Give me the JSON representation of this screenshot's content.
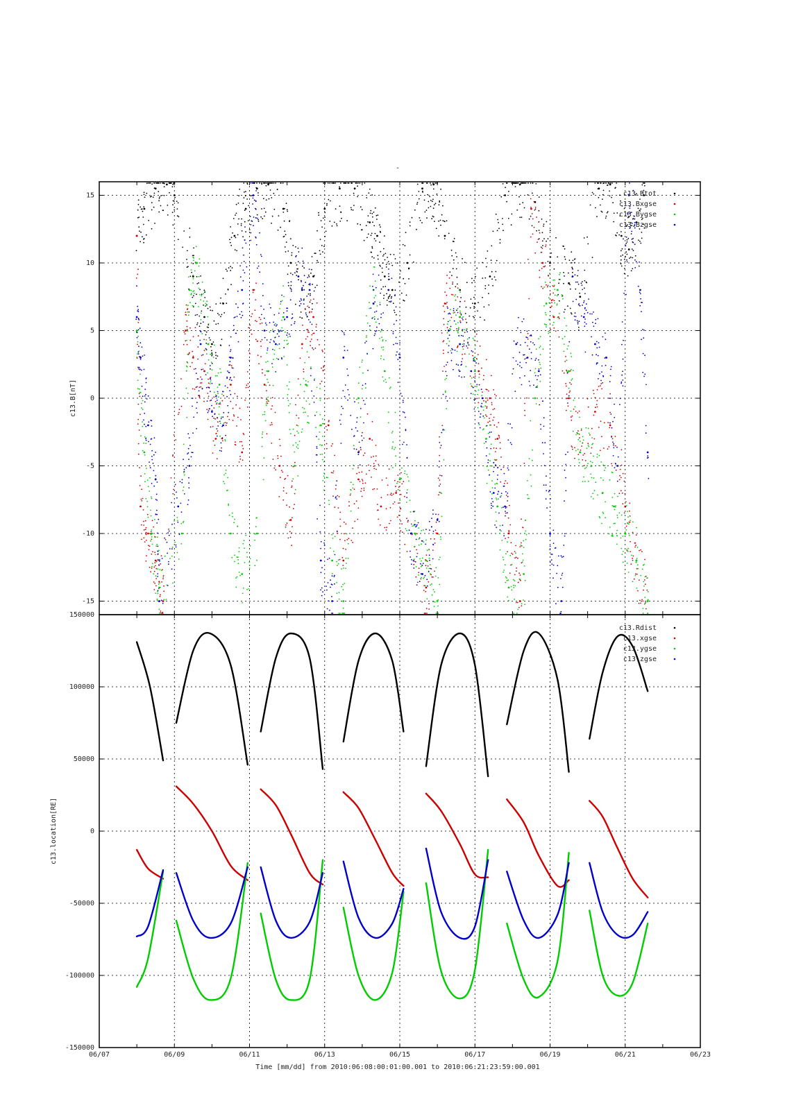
{
  "figure": {
    "top_title": "-",
    "footer": "Time [mm/dd]  from 2010:06:08:00:01:00.001  to  2010:06:21:23:59:00.001"
  },
  "colors": {
    "black": "#000000",
    "red": "#cc0000",
    "green": "#00cc00",
    "blue": "#0000cc"
  },
  "chart_data": [
    {
      "type": "scatter",
      "ylabel": "c13.B[nT]",
      "x_unit": "days since 06/07 (axis 06/07 .. 06/23)",
      "xlim": [
        0,
        16
      ],
      "ylim": [
        -16,
        16
      ],
      "yticks": [
        15,
        10,
        5,
        0,
        -5,
        -10,
        -15
      ],
      "grid": true,
      "legend_position": "top-right",
      "legend": [
        "c13.Btot",
        "c13.Bxgse",
        "c13.Bygse",
        "c13.Bzgse"
      ],
      "series": [
        {
          "name": "c13.Btot",
          "color": "#000000",
          "x": [
            1.0,
            1.2,
            1.5,
            1.8,
            2.0,
            2.5,
            2.8,
            3.0,
            3.3,
            3.6,
            3.9,
            4.2,
            4.5,
            4.9,
            5.1,
            5.4,
            5.7,
            6.0,
            6.4,
            6.8,
            7.2,
            7.4,
            7.6,
            7.8,
            8.2,
            8.6,
            8.9,
            9.2,
            9.6,
            10.0,
            10.4,
            10.8,
            11.2,
            11.6,
            12.0,
            12.5,
            12.8,
            13.3,
            13.6,
            13.9,
            14.1,
            14.3,
            14.5
          ],
          "y": [
            12,
            14,
            15.5,
            15.8,
            15,
            9,
            6,
            4,
            7,
            12,
            14,
            15.5,
            15.8,
            14,
            10,
            8,
            9,
            14,
            15.5,
            15.5,
            13,
            12,
            9,
            8,
            10,
            15.5,
            15.8,
            12,
            8,
            7,
            9,
            15,
            15.8,
            14.5,
            10,
            8.5,
            7.5,
            15.5,
            15.8,
            12,
            11,
            13,
            15
          ]
        },
        {
          "name": "c13.Bxgse",
          "color": "#cc0000",
          "x": [
            1.0,
            1.1,
            1.3,
            1.5,
            1.7,
            2.3,
            2.5,
            2.8,
            3.1,
            3.5,
            3.8,
            4.1,
            4.4,
            4.8,
            5.1,
            5.4,
            5.7,
            6.1,
            6.5,
            6.9,
            7.2,
            7.5,
            7.9,
            8.3,
            8.7,
            9.0,
            9.2,
            9.6,
            10.1,
            10.4,
            10.6,
            10.9,
            11.2,
            11.5,
            11.8,
            12.1,
            12.5,
            12.8,
            13.2,
            13.6,
            14.0,
            14.3,
            14.6
          ],
          "y": [
            12,
            -8,
            -10,
            -12,
            -15,
            5,
            3,
            2,
            -3,
            1,
            -4,
            8,
            1,
            -5,
            -9,
            4,
            6,
            -2,
            -12,
            -6,
            -3,
            -8,
            -7,
            -10,
            -14,
            -10,
            7,
            6,
            2,
            0,
            -3,
            -10,
            -15,
            14,
            10,
            6,
            0,
            -4,
            -1,
            -2,
            -8,
            -12,
            -15
          ]
        },
        {
          "name": "c13.Bygse",
          "color": "#00cc00",
          "x": [
            1.0,
            1.2,
            1.4,
            1.6,
            2.2,
            2.4,
            2.6,
            2.9,
            3.2,
            3.5,
            3.8,
            4.2,
            4.5,
            4.9,
            5.2,
            5.5,
            5.9,
            6.2,
            6.5,
            6.9,
            7.3,
            7.6,
            8.0,
            8.4,
            8.7,
            9.0,
            9.3,
            9.6,
            10.0,
            10.3,
            10.6,
            10.9,
            11.3,
            11.6,
            11.9,
            12.2,
            12.5,
            12.8,
            13.1,
            13.4,
            13.7,
            14.0,
            14.3,
            14.6
          ],
          "y": [
            5,
            -4,
            -10,
            -14,
            -10,
            8,
            10,
            4,
            1,
            -10,
            -13,
            -10,
            2,
            6,
            -5,
            1,
            -2,
            -12,
            -15,
            0,
            8,
            2,
            -6,
            -10,
            -12,
            -15,
            5,
            6,
            2,
            -3,
            -8,
            -14,
            -13,
            0,
            7,
            8,
            2,
            -4,
            -5,
            -7,
            -8,
            -10,
            -12,
            -15
          ]
        },
        {
          "name": "c13.Bzgse",
          "color": "#0000cc",
          "x": [
            1.0,
            1.1,
            1.3,
            1.5,
            1.6,
            2.1,
            2.4,
            2.7,
            3.0,
            3.3,
            3.5,
            3.8,
            4.1,
            4.4,
            4.7,
            5.0,
            5.3,
            5.6,
            5.9,
            6.2,
            6.5,
            6.9,
            7.3,
            7.7,
            8.0,
            8.3,
            8.6,
            9.0,
            9.3,
            9.6,
            9.9,
            10.2,
            10.5,
            10.8,
            11.1,
            11.4,
            11.7,
            12.0,
            12.3,
            12.6,
            12.9,
            13.2,
            13.5,
            13.8,
            14.1,
            14.4,
            14.6
          ],
          "y": [
            6,
            3,
            -2,
            -6,
            -15,
            -8,
            -5,
            4,
            -1,
            -2,
            3,
            8,
            15,
            5,
            4,
            6,
            9,
            8,
            -12,
            -15,
            3,
            -4,
            7,
            8,
            3,
            -10,
            -13,
            -9,
            5,
            4,
            2,
            0,
            -7,
            -8,
            4,
            3,
            2,
            -10,
            -15,
            9,
            6,
            4,
            3,
            -5,
            15,
            8,
            -4
          ]
        }
      ]
    },
    {
      "type": "line",
      "ylabel": "c13.location[RE]",
      "x_unit": "days since 06/07 (axis 06/07 .. 06/23)",
      "xlim": [
        0,
        16
      ],
      "ylim": [
        -150000,
        150000
      ],
      "yticks": [
        150000,
        100000,
        50000,
        0,
        -50000,
        -100000,
        -150000
      ],
      "xticks": [
        "06/07",
        "06/09",
        "06/11",
        "06/13",
        "06/15",
        "06/17",
        "06/19",
        "06/21",
        "06/23"
      ],
      "grid": true,
      "legend_position": "top-right",
      "segments": [
        [
          1.0,
          1.7
        ],
        [
          2.05,
          3.95
        ],
        [
          4.3,
          5.95
        ],
        [
          6.5,
          8.1
        ],
        [
          8.7,
          10.35
        ],
        [
          10.85,
          12.5
        ],
        [
          13.05,
          14.6
        ]
      ],
      "series": [
        {
          "name": "c13.Rdist",
          "color": "#000000",
          "points": [
            [
              1.0,
              131000
            ],
            [
              1.35,
              100000
            ],
            [
              1.7,
              49000
            ],
            [
              2.05,
              75000
            ],
            [
              2.5,
              125000
            ],
            [
              2.95,
              137000
            ],
            [
              3.5,
              115000
            ],
            [
              3.95,
              46000
            ],
            [
              4.3,
              69000
            ],
            [
              4.7,
              120000
            ],
            [
              5.1,
              137000
            ],
            [
              5.6,
              120000
            ],
            [
              5.95,
              43000
            ],
            [
              6.5,
              62000
            ],
            [
              6.9,
              118000
            ],
            [
              7.35,
              137000
            ],
            [
              7.8,
              118000
            ],
            [
              8.1,
              69000
            ],
            [
              8.7,
              45000
            ],
            [
              9.1,
              115000
            ],
            [
              9.6,
              137000
            ],
            [
              10.0,
              115000
            ],
            [
              10.35,
              38000
            ],
            [
              10.85,
              74000
            ],
            [
              11.3,
              125000
            ],
            [
              11.7,
              137000
            ],
            [
              12.2,
              105000
            ],
            [
              12.5,
              41000
            ],
            [
              13.05,
              64000
            ],
            [
              13.4,
              110000
            ],
            [
              13.8,
              135000
            ],
            [
              14.2,
              128000
            ],
            [
              14.6,
              97000
            ]
          ]
        },
        {
          "name": "c13.xgse",
          "color": "#cc0000",
          "points": [
            [
              1.0,
              -13000
            ],
            [
              1.3,
              -26000
            ],
            [
              1.7,
              -33000
            ],
            [
              2.05,
              31000
            ],
            [
              2.5,
              19000
            ],
            [
              3.0,
              0
            ],
            [
              3.5,
              -24000
            ],
            [
              3.95,
              -34000
            ],
            [
              4.3,
              29000
            ],
            [
              4.7,
              18000
            ],
            [
              5.1,
              -2000
            ],
            [
              5.6,
              -29000
            ],
            [
              5.95,
              -37000
            ],
            [
              6.5,
              27000
            ],
            [
              6.9,
              16000
            ],
            [
              7.35,
              -6000
            ],
            [
              7.8,
              -29000
            ],
            [
              8.1,
              -38000
            ],
            [
              8.7,
              26000
            ],
            [
              9.1,
              14000
            ],
            [
              9.6,
              -9000
            ],
            [
              10.0,
              -30000
            ],
            [
              10.35,
              -32000
            ],
            [
              10.85,
              22000
            ],
            [
              11.3,
              6000
            ],
            [
              11.7,
              -17000
            ],
            [
              12.2,
              -38000
            ],
            [
              12.5,
              -34000
            ],
            [
              13.05,
              21000
            ],
            [
              13.4,
              10000
            ],
            [
              13.8,
              -12000
            ],
            [
              14.2,
              -33000
            ],
            [
              14.6,
              -46000
            ]
          ]
        },
        {
          "name": "c13.ygse",
          "color": "#00cc00",
          "points": [
            [
              1.0,
              -108000
            ],
            [
              1.3,
              -88000
            ],
            [
              1.7,
              -28000
            ],
            [
              2.05,
              -62000
            ],
            [
              2.5,
              -102000
            ],
            [
              2.95,
              -117000
            ],
            [
              3.5,
              -102000
            ],
            [
              3.95,
              -22000
            ],
            [
              4.3,
              -57000
            ],
            [
              4.7,
              -103000
            ],
            [
              5.1,
              -117000
            ],
            [
              5.6,
              -103000
            ],
            [
              5.95,
              -20000
            ],
            [
              6.5,
              -53000
            ],
            [
              6.9,
              -100000
            ],
            [
              7.35,
              -117000
            ],
            [
              7.8,
              -98000
            ],
            [
              8.1,
              -42000
            ],
            [
              8.7,
              -36000
            ],
            [
              9.1,
              -97000
            ],
            [
              9.6,
              -116000
            ],
            [
              10.0,
              -96000
            ],
            [
              10.35,
              -13000
            ],
            [
              10.85,
              -64000
            ],
            [
              11.3,
              -103000
            ],
            [
              11.7,
              -115000
            ],
            [
              12.2,
              -90000
            ],
            [
              12.5,
              -15000
            ],
            [
              13.05,
              -55000
            ],
            [
              13.4,
              -100000
            ],
            [
              13.8,
              -114000
            ],
            [
              14.2,
              -105000
            ],
            [
              14.6,
              -64000
            ]
          ]
        },
        {
          "name": "c13.zgse",
          "color": "#0000cc",
          "points": [
            [
              1.0,
              -73000
            ],
            [
              1.3,
              -66000
            ],
            [
              1.7,
              -27000
            ],
            [
              2.05,
              -29000
            ],
            [
              2.5,
              -62000
            ],
            [
              2.95,
              -74000
            ],
            [
              3.5,
              -64000
            ],
            [
              3.95,
              -25000
            ],
            [
              4.3,
              -25000
            ],
            [
              4.7,
              -62000
            ],
            [
              5.1,
              -74000
            ],
            [
              5.6,
              -63000
            ],
            [
              5.95,
              -29000
            ],
            [
              6.5,
              -21000
            ],
            [
              6.9,
              -60000
            ],
            [
              7.35,
              -74000
            ],
            [
              7.8,
              -64000
            ],
            [
              8.1,
              -40000
            ],
            [
              8.7,
              -12000
            ],
            [
              9.1,
              -56000
            ],
            [
              9.6,
              -74000
            ],
            [
              10.0,
              -66000
            ],
            [
              10.35,
              -20000
            ],
            [
              10.85,
              -28000
            ],
            [
              11.3,
              -62000
            ],
            [
              11.7,
              -74000
            ],
            [
              12.2,
              -58000
            ],
            [
              12.5,
              -22000
            ],
            [
              13.05,
              -22000
            ],
            [
              13.4,
              -56000
            ],
            [
              13.8,
              -72000
            ],
            [
              14.2,
              -72000
            ],
            [
              14.6,
              -56000
            ]
          ]
        }
      ]
    }
  ]
}
